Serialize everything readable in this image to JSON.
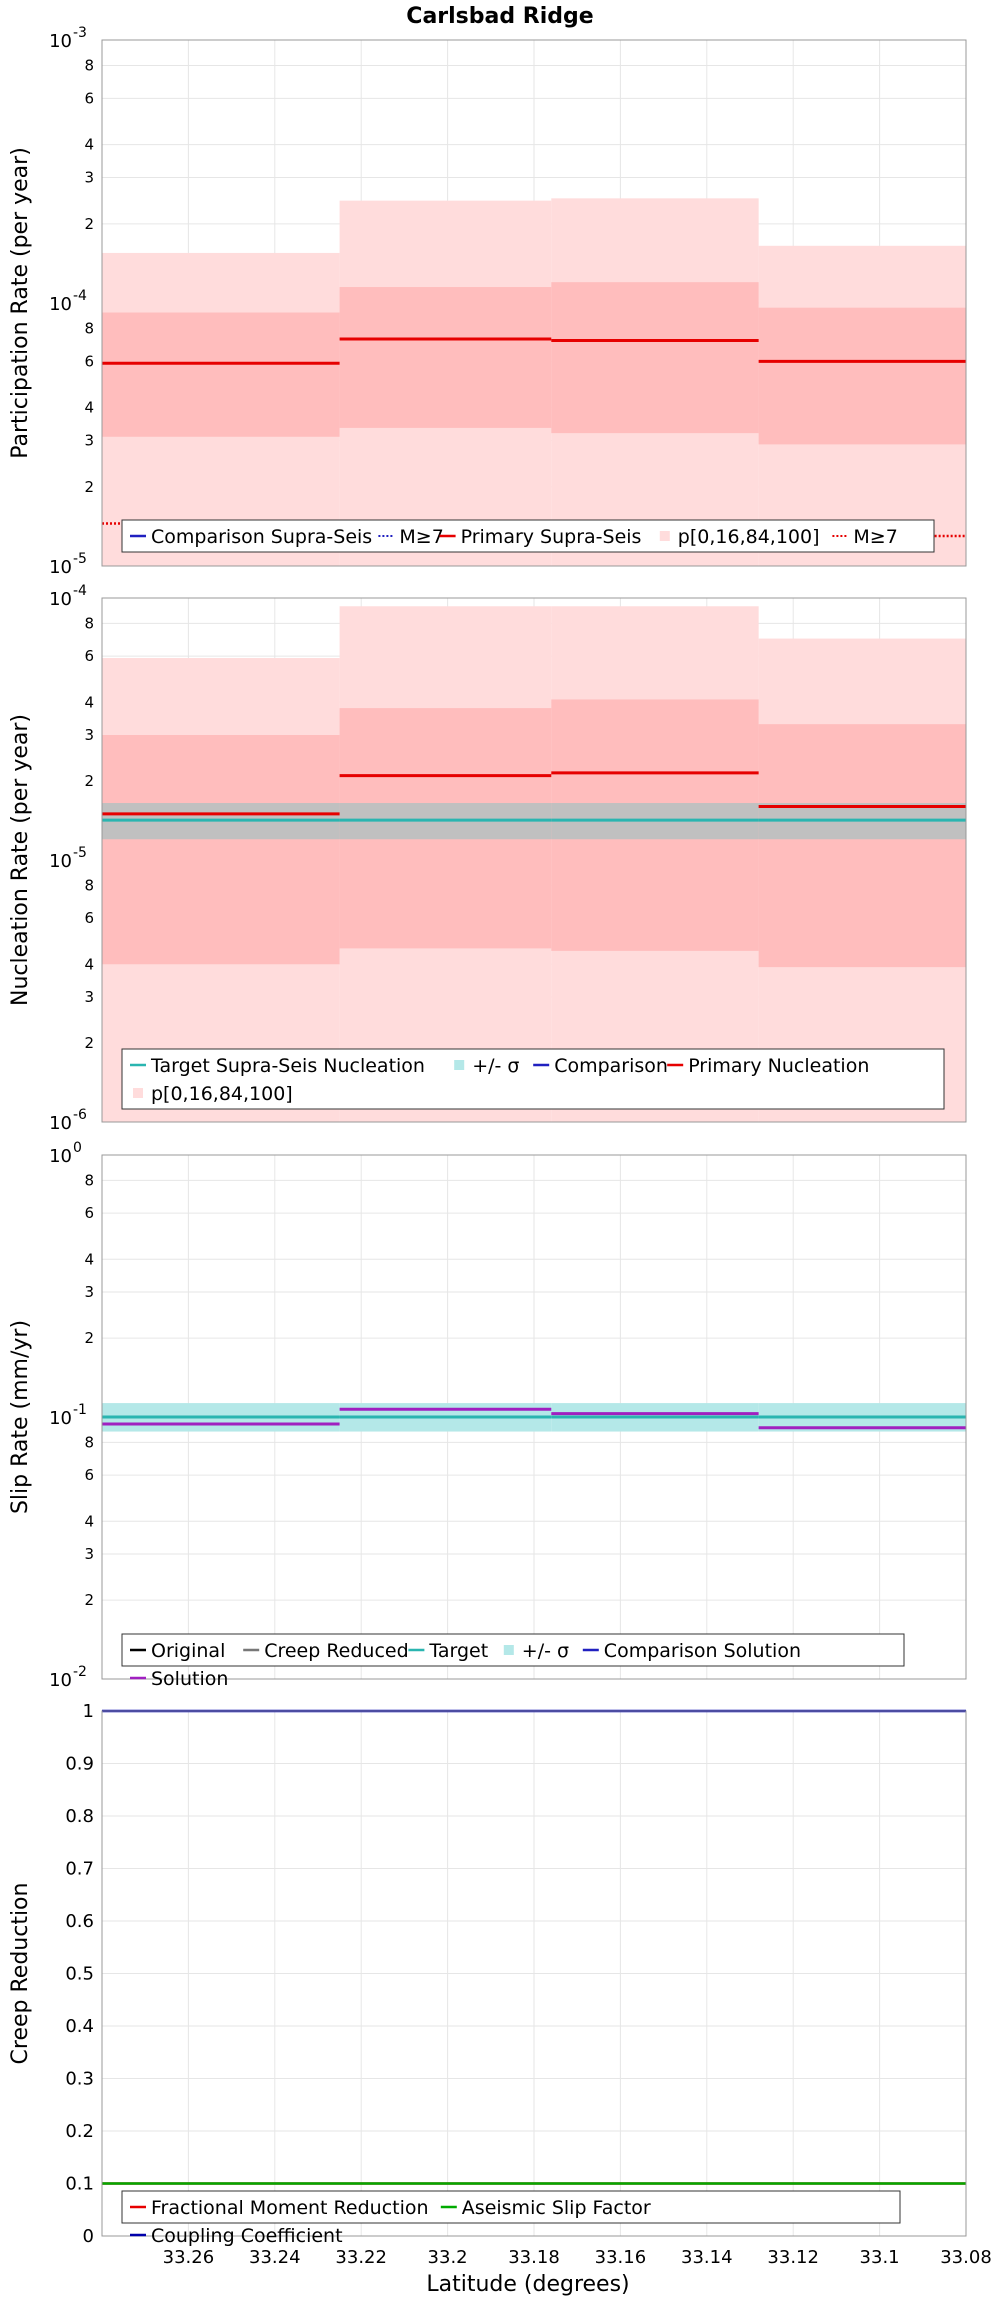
{
  "title": "Carlsbad Ridge",
  "xlabel": "Latitude (degrees)",
  "colors": {
    "primary": "#e60000",
    "band_outer": "#ffdcdc",
    "band_inner": "#ffbdbd",
    "target": "#2ab5b0",
    "target_band": "#b4e8e8",
    "solution": "#a020c0",
    "comparison": "#2020c0",
    "target_nucleation_band": "#c0c0c0",
    "aseismic": "#00aa00",
    "coupling": "#0000aa",
    "gray": "#777777",
    "black": "#000000"
  },
  "chart_data": [
    {
      "type": "line",
      "ylabel": "Participation Rate (per year)",
      "yscale": "log",
      "ylim": [
        1e-05,
        0.001
      ],
      "xlim": [
        33.28,
        33.08
      ],
      "xticks": [
        33.26,
        33.24,
        33.22,
        33.2,
        33.18,
        33.16,
        33.14,
        33.12,
        33.1,
        33.08
      ],
      "yticks": {
        "decades": [
          {
            "value": 1e-05,
            "base": "10",
            "exp": "-5"
          },
          {
            "value": 0.0001,
            "base": "10",
            "exp": "-4"
          },
          {
            "value": 0.001,
            "base": "10",
            "exp": "-3"
          }
        ],
        "minor": [
          {
            "value": 2e-05,
            "label": "2"
          },
          {
            "value": 3e-05,
            "label": "3"
          },
          {
            "value": 4e-05,
            "label": "4"
          },
          {
            "value": 6e-05,
            "label": "6"
          },
          {
            "value": 8e-05,
            "label": "8"
          },
          {
            "value": 0.0002,
            "label": "2"
          },
          {
            "value": 0.0003,
            "label": "3"
          },
          {
            "value": 0.0004,
            "label": "4"
          },
          {
            "value": 0.0006,
            "label": "6"
          },
          {
            "value": 0.0008,
            "label": "8"
          }
        ]
      },
      "segments": [
        {
          "x0": 33.28,
          "x1": 33.225
        },
        {
          "x0": 33.225,
          "x1": 33.176
        },
        {
          "x0": 33.176,
          "x1": 33.128
        },
        {
          "x0": 33.128,
          "x1": 33.08
        }
      ],
      "series": [
        {
          "name": "p[0,16,84,100]",
          "kind": "band",
          "color": "band_outer",
          "low": [
            1e-05,
            1e-05,
            1e-05,
            1e-05
          ],
          "high": [
            0.000155,
            0.000245,
            0.00025,
            0.000165
          ]
        },
        {
          "name": "",
          "kind": "band",
          "color": "band_inner",
          "low": [
            3.1e-05,
            3.35e-05,
            3.2e-05,
            2.9e-05
          ],
          "high": [
            9.2e-05,
            0.000115,
            0.00012,
            9.6e-05
          ]
        },
        {
          "name": "Primary Supra-Seis",
          "kind": "line",
          "color": "primary",
          "values": [
            5.9e-05,
            7.3e-05,
            7.2e-05,
            6e-05
          ]
        },
        {
          "name": "M≥7",
          "kind": "dotted",
          "color": "primary",
          "values": [
            1.45e-05,
            1.45e-05,
            null,
            1.3e-05
          ]
        }
      ],
      "legend": {
        "position": "bottom-left",
        "items": [
          {
            "label": "Comparison Supra-Seis",
            "color": "comparison",
            "kind": "line"
          },
          {
            "label": "M≥7",
            "color": "comparison",
            "kind": "dotted"
          },
          {
            "label": "Primary Supra-Seis",
            "color": "primary",
            "kind": "line"
          },
          {
            "label": "p[0,16,84,100]",
            "color": "band_outer",
            "kind": "swatch"
          },
          {
            "label": "M≥7",
            "color": "primary",
            "kind": "dotted"
          }
        ]
      }
    },
    {
      "type": "line",
      "ylabel": "Nucleation Rate (per year)",
      "yscale": "log",
      "ylim": [
        1e-06,
        0.0001
      ],
      "xlim": [
        33.28,
        33.08
      ],
      "xticks": [
        33.26,
        33.24,
        33.22,
        33.2,
        33.18,
        33.16,
        33.14,
        33.12,
        33.1,
        33.08
      ],
      "yticks": {
        "decades": [
          {
            "value": 1e-06,
            "base": "10",
            "exp": "-6"
          },
          {
            "value": 1e-05,
            "base": "10",
            "exp": "-5"
          },
          {
            "value": 0.0001,
            "base": "10",
            "exp": "-4"
          }
        ],
        "minor": [
          {
            "value": 2e-06,
            "label": "2"
          },
          {
            "value": 3e-06,
            "label": "3"
          },
          {
            "value": 4e-06,
            "label": "4"
          },
          {
            "value": 6e-06,
            "label": "6"
          },
          {
            "value": 8e-06,
            "label": "8"
          },
          {
            "value": 2e-05,
            "label": "2"
          },
          {
            "value": 3e-05,
            "label": "3"
          },
          {
            "value": 4e-05,
            "label": "4"
          },
          {
            "value": 6e-05,
            "label": "6"
          },
          {
            "value": 8e-05,
            "label": "8"
          }
        ]
      },
      "segments": [
        {
          "x0": 33.28,
          "x1": 33.225
        },
        {
          "x0": 33.225,
          "x1": 33.176
        },
        {
          "x0": 33.176,
          "x1": 33.128
        },
        {
          "x0": 33.128,
          "x1": 33.08
        }
      ],
      "series": [
        {
          "name": "p[0,16,84,100]",
          "kind": "band",
          "color": "band_outer",
          "low": [
            1e-06,
            1e-06,
            1e-06,
            1e-06
          ],
          "high": [
            5.9e-05,
            9.3e-05,
            9.3e-05,
            7e-05
          ]
        },
        {
          "name": "",
          "kind": "band",
          "color": "band_inner",
          "low": [
            4e-06,
            4.6e-06,
            4.5e-06,
            3.9e-06
          ],
          "high": [
            3e-05,
            3.8e-05,
            4.1e-05,
            3.3e-05
          ]
        },
        {
          "name": "+/- σ",
          "kind": "band",
          "color": "target_nucleation_band",
          "low": [
            1.2e-05,
            1.2e-05,
            1.2e-05,
            1.2e-05
          ],
          "high": [
            1.65e-05,
            1.65e-05,
            1.65e-05,
            1.65e-05
          ]
        },
        {
          "name": "Target Supra-Seis Nucleation",
          "kind": "line",
          "color": "target",
          "values": [
            1.42e-05,
            1.42e-05,
            1.42e-05,
            1.42e-05
          ]
        },
        {
          "name": "Primary Nucleation",
          "kind": "line",
          "color": "primary",
          "values": [
            1.5e-05,
            2.1e-05,
            2.15e-05,
            1.6e-05
          ]
        }
      ],
      "legend": {
        "position": "bottom-left",
        "items": [
          {
            "label": "Target Supra-Seis Nucleation",
            "color": "target",
            "kind": "line"
          },
          {
            "label": "+/- σ",
            "color": "target_band",
            "kind": "swatch"
          },
          {
            "label": "Comparison",
            "color": "comparison",
            "kind": "line"
          },
          {
            "label": "Primary Nucleation",
            "color": "primary",
            "kind": "line"
          },
          {
            "label": "p[0,16,84,100]",
            "color": "band_outer",
            "kind": "swatch"
          }
        ]
      }
    },
    {
      "type": "line",
      "ylabel": "Slip Rate (mm/yr)",
      "yscale": "log",
      "ylim": [
        0.01,
        1
      ],
      "xlim": [
        33.28,
        33.08
      ],
      "xticks": [
        33.26,
        33.24,
        33.22,
        33.2,
        33.18,
        33.16,
        33.14,
        33.12,
        33.1,
        33.08
      ],
      "yticks": {
        "decades": [
          {
            "value": 0.01,
            "base": "10",
            "exp": "-2"
          },
          {
            "value": 0.1,
            "base": "10",
            "exp": "-1"
          },
          {
            "value": 1,
            "base": "10",
            "exp": "0"
          }
        ],
        "minor": [
          {
            "value": 0.02,
            "label": "2"
          },
          {
            "value": 0.03,
            "label": "3"
          },
          {
            "value": 0.04,
            "label": "4"
          },
          {
            "value": 0.06,
            "label": "6"
          },
          {
            "value": 0.08,
            "label": "8"
          },
          {
            "value": 0.2,
            "label": "2"
          },
          {
            "value": 0.3,
            "label": "3"
          },
          {
            "value": 0.4,
            "label": "4"
          },
          {
            "value": 0.6,
            "label": "6"
          },
          {
            "value": 0.8,
            "label": "8"
          }
        ]
      },
      "segments": [
        {
          "x0": 33.28,
          "x1": 33.225
        },
        {
          "x0": 33.225,
          "x1": 33.176
        },
        {
          "x0": 33.176,
          "x1": 33.128
        },
        {
          "x0": 33.128,
          "x1": 33.08
        }
      ],
      "series": [
        {
          "name": "+/- σ",
          "kind": "band",
          "color": "target_band",
          "low": [
            0.088,
            0.088,
            0.088,
            0.088
          ],
          "high": [
            0.113,
            0.113,
            0.113,
            0.113
          ]
        },
        {
          "name": "Target",
          "kind": "line",
          "color": "target",
          "values": [
            0.1,
            0.1,
            0.1,
            0.1
          ]
        },
        {
          "name": "Solution",
          "kind": "line",
          "color": "solution",
          "values": [
            0.094,
            0.107,
            0.103,
            0.091
          ]
        }
      ],
      "legend": {
        "position": "bottom-left",
        "items": [
          {
            "label": "Original",
            "color": "black",
            "kind": "line"
          },
          {
            "label": "Creep Reduced",
            "color": "gray",
            "kind": "line"
          },
          {
            "label": "Target",
            "color": "target",
            "kind": "line"
          },
          {
            "label": "+/- σ",
            "color": "target_band",
            "kind": "swatch"
          },
          {
            "label": "Comparison Solution",
            "color": "comparison",
            "kind": "line"
          },
          {
            "label": "Solution",
            "color": "solution",
            "kind": "line"
          }
        ]
      }
    },
    {
      "type": "line",
      "ylabel": "Creep Reduction",
      "yscale": "linear",
      "ylim": [
        0,
        1
      ],
      "xlim": [
        33.28,
        33.08
      ],
      "xlabel": "Latitude (degrees)",
      "xticks": [
        33.26,
        33.24,
        33.22,
        33.2,
        33.18,
        33.16,
        33.14,
        33.12,
        33.1,
        33.08
      ],
      "xticklabels": [
        "33.26",
        "33.24",
        "33.22",
        "33.2",
        "33.18",
        "33.16",
        "33.14",
        "33.12",
        "33.1",
        "33.08"
      ],
      "yticks": [
        0,
        0.1,
        0.2,
        0.3,
        0.4,
        0.5,
        0.6,
        0.7,
        0.8,
        0.9,
        1
      ],
      "yticklabels": [
        "0",
        "0.1",
        "0.2",
        "0.3",
        "0.4",
        "0.5",
        "0.6",
        "0.7",
        "0.8",
        "0.9",
        "1"
      ],
      "series": [
        {
          "name": "Fractional Moment Reduction",
          "kind": "line",
          "color": "primary",
          "x": [
            33.28,
            33.08
          ],
          "values": [
            0.1,
            0.1
          ]
        },
        {
          "name": "Aseismic Slip Factor",
          "kind": "line",
          "color": "aseismic",
          "x": [
            33.28,
            33.08
          ],
          "values": [
            0.1,
            0.1
          ]
        },
        {
          "name": "Coupling Coefficient",
          "kind": "line",
          "color": "coupling",
          "x": [
            33.28,
            33.08
          ],
          "values": [
            1.0,
            1.0
          ]
        }
      ],
      "legend": {
        "position": "bottom-left",
        "items": [
          {
            "label": "Fractional Moment Reduction",
            "color": "primary",
            "kind": "line"
          },
          {
            "label": "Aseismic Slip Factor",
            "color": "aseismic",
            "kind": "line"
          },
          {
            "label": "Coupling Coefficient",
            "color": "coupling",
            "kind": "line"
          }
        ]
      }
    }
  ]
}
